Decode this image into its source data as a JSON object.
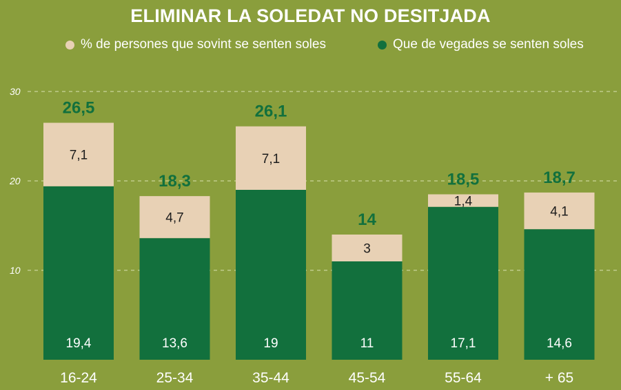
{
  "chart_data": {
    "type": "bar",
    "stacked": true,
    "title": "ELIMINAR LA SOLEDAT NO DESITJADA",
    "categories": [
      "16-24",
      "25-34",
      "35-44",
      "45-54",
      "55-64",
      "+ 65"
    ],
    "series": [
      {
        "name": "Que de vegades se senten soles",
        "values": [
          "19,4",
          "13,6",
          "19",
          "11",
          "17,1",
          "14,6"
        ],
        "color": "#12703d"
      },
      {
        "name": "% de persones que sovint se senten soles",
        "values": [
          "7,1",
          "4,7",
          "7,1",
          "3",
          "1,4",
          "4,1"
        ],
        "color": "#e8d1b5"
      }
    ],
    "totals": [
      "26,5",
      "18,3",
      "26,1",
      "14",
      "18,5",
      "18,7"
    ],
    "yticks": [
      "10",
      "20",
      "30"
    ],
    "ylim": [
      0,
      30
    ],
    "grid": true,
    "legend_position": "top",
    "colors": {
      "background": "#8a9e3c",
      "grid": "#c9d49a",
      "total_label": "#12703d",
      "axis_text": "#ffffff"
    }
  }
}
